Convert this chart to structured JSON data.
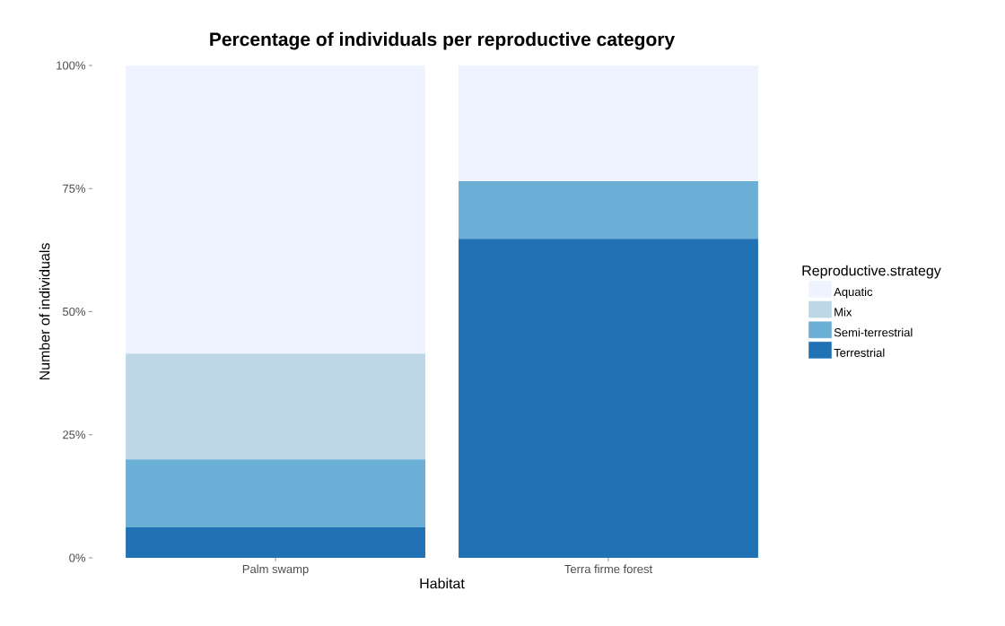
{
  "chart_data": {
    "type": "bar",
    "stacked": true,
    "title": "Percentage of individuals per reproductive category",
    "xlabel": "Habitat",
    "ylabel": "Number of individuals",
    "legend_title": "Reproductive.strategy",
    "legend": "right",
    "grid": false,
    "categories": [
      "Palm swamp",
      "Terra firme forest"
    ],
    "ylim": [
      0,
      100
    ],
    "yticks": [
      {
        "value": 0,
        "label": "0%"
      },
      {
        "value": 25,
        "label": "25%"
      },
      {
        "value": 50,
        "label": "50%"
      },
      {
        "value": 75,
        "label": "75%"
      },
      {
        "value": 100,
        "label": "100%"
      }
    ],
    "series": [
      {
        "name": "Terrestrial",
        "color": "#2171b5",
        "values": [
          6.2,
          64.8
        ]
      },
      {
        "name": "Semi-terrestrial",
        "color": "#6baed6",
        "values": [
          13.8,
          11.7
        ]
      },
      {
        "name": "Mix",
        "color": "#bdd7e7",
        "values": [
          21.5,
          0
        ]
      },
      {
        "name": "Aquatic",
        "color": "#eff3ff",
        "values": [
          58.5,
          23.5
        ]
      }
    ]
  }
}
